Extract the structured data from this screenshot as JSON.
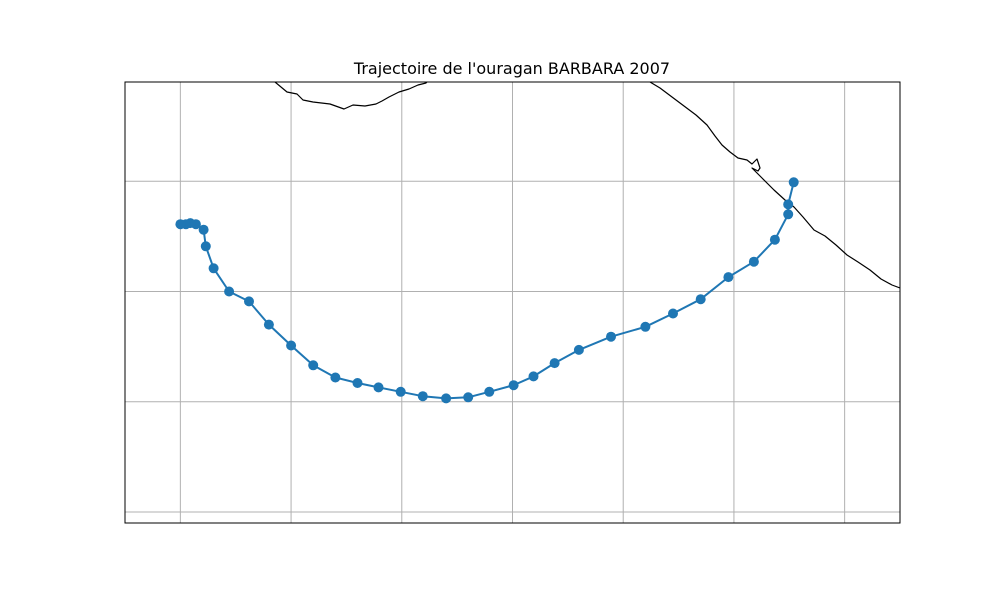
{
  "chart_data": {
    "type": "line",
    "title": "Trajectoire de l'ouragan BARBARA 2007",
    "xlabel": "",
    "ylabel": "",
    "xlim": [
      -104.5,
      -97.5
    ],
    "ylim": [
      11.4,
      15.4
    ],
    "grid": true,
    "projection": "PlateCarree",
    "coastlines": true,
    "gridlines": {
      "lon": [
        -104,
        -103,
        -102,
        -101,
        -100,
        -99,
        -98
      ],
      "lat": [
        11.5,
        12.5,
        13.5,
        14.5
      ]
    },
    "series": [
      {
        "color": "#1f77b4",
        "marker": "circle",
        "lon": [
          -98.46,
          -98.51,
          -98.51,
          -98.63,
          -98.82,
          -99.05,
          -99.3,
          -99.55,
          -99.8,
          -100.11,
          -100.4,
          -100.62,
          -100.81,
          -100.99,
          -101.21,
          -101.4,
          -101.6,
          -101.81,
          -102.01,
          -102.21,
          -102.4,
          -102.6,
          -102.8,
          -103.0,
          -103.2,
          -103.38,
          -103.56,
          -103.7,
          -103.77,
          -103.79,
          -103.86,
          -103.91,
          -103.95,
          -104.0
        ],
        "lat": [
          14.49,
          14.29,
          14.2,
          13.97,
          13.77,
          13.63,
          13.43,
          13.3,
          13.18,
          13.09,
          12.97,
          12.85,
          12.73,
          12.65,
          12.59,
          12.54,
          12.53,
          12.55,
          12.59,
          12.63,
          12.67,
          12.72,
          12.83,
          13.01,
          13.2,
          13.41,
          13.5,
          13.71,
          13.91,
          14.06,
          14.11,
          14.12,
          14.11,
          14.11
        ]
      }
    ]
  },
  "map": {
    "land_color": "#ffffff",
    "coast_color": "#000000",
    "line_color": "#1f77b4"
  }
}
